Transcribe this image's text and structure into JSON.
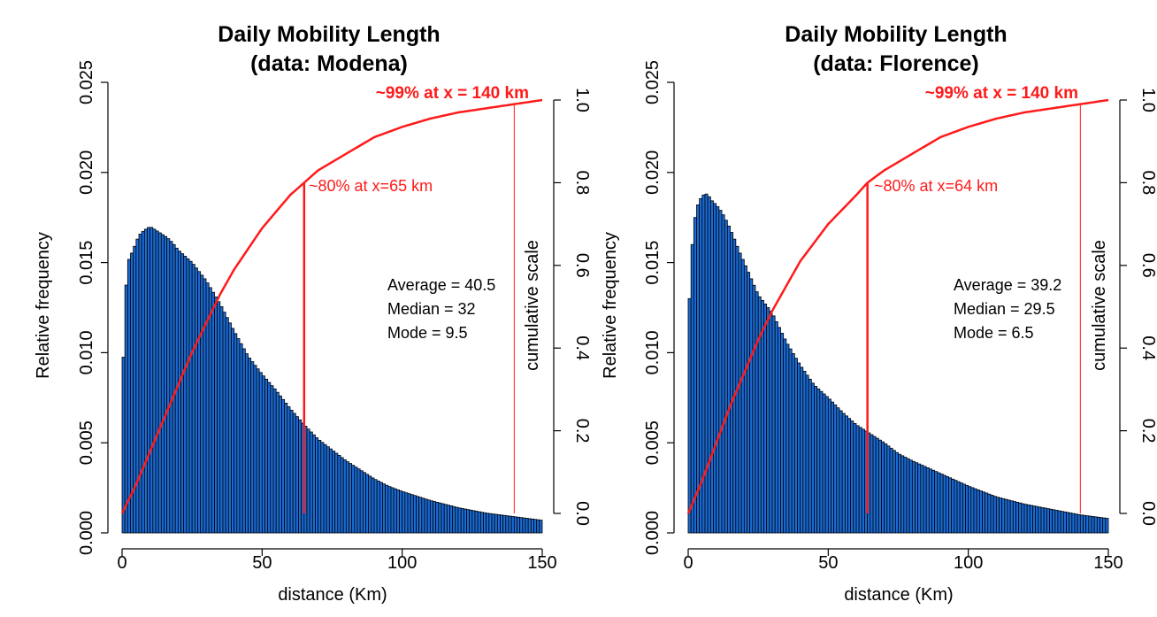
{
  "colors": {
    "bar_fill": "#1a6bd6",
    "bar_stroke": "#000000",
    "cdf_line": "#ff1a1a",
    "axis": "#000000"
  },
  "chart_data": [
    {
      "type": "bar",
      "title_line1": "Daily Mobility Length",
      "title_line2": "(data: Modena)",
      "xlabel": "distance (Km)",
      "ylabel": "Relative frequency",
      "y2label": "cumulative scale",
      "xlim": [
        0,
        150
      ],
      "ylim": [
        0,
        0.025
      ],
      "y2lim": [
        0,
        1.0
      ],
      "x_ticks": [
        0,
        50,
        100,
        150
      ],
      "x_tick_labels": [
        "0",
        "50",
        "100",
        "150"
      ],
      "y_ticks": [
        0,
        0.005,
        0.01,
        0.015,
        0.02,
        0.025
      ],
      "y_tick_labels": [
        "0.000",
        "0.005",
        "0.010",
        "0.015",
        "0.020",
        "0.025"
      ],
      "y2_ticks": [
        0,
        0.2,
        0.4,
        0.6,
        0.8,
        1.0
      ],
      "y2_tick_labels": [
        "0.0",
        "0.2",
        "0.4",
        "0.6",
        "0.8",
        "1.0"
      ],
      "bin_width": 1,
      "histogram": {
        "x": [
          0,
          1,
          2,
          4,
          6,
          8,
          10,
          12,
          14,
          16,
          18,
          20,
          25,
          30,
          35,
          40,
          45,
          50,
          55,
          60,
          65,
          70,
          75,
          80,
          85,
          90,
          95,
          100,
          110,
          120,
          130,
          140,
          150
        ],
        "y": [
          0.007,
          0.0125,
          0.015,
          0.0157,
          0.0165,
          0.0168,
          0.017,
          0.0168,
          0.0166,
          0.0164,
          0.0161,
          0.0157,
          0.015,
          0.014,
          0.0127,
          0.0112,
          0.0098,
          0.0088,
          0.0079,
          0.0069,
          0.006,
          0.0052,
          0.0046,
          0.004,
          0.0035,
          0.003,
          0.0026,
          0.0023,
          0.0018,
          0.0014,
          0.0011,
          0.0009,
          0.0007
        ]
      },
      "cdf": {
        "x": [
          0,
          5,
          10,
          15,
          20,
          25,
          30,
          35,
          40,
          50,
          60,
          65,
          70,
          80,
          90,
          100,
          110,
          120,
          130,
          140,
          150
        ],
        "y": [
          0.0,
          0.07,
          0.15,
          0.23,
          0.31,
          0.39,
          0.46,
          0.53,
          0.59,
          0.69,
          0.77,
          0.8,
          0.83,
          0.87,
          0.91,
          0.935,
          0.955,
          0.97,
          0.98,
          0.99,
          1.0
        ]
      },
      "markers": [
        {
          "x": 65,
          "cdf": 0.8,
          "label": "~80% at x=65 km"
        },
        {
          "x": 140,
          "cdf": 0.99,
          "label": "~99% at x = 140 km"
        }
      ],
      "stats": [
        "Average = 40.5",
        "Median = 32",
        "Mode = 9.5"
      ]
    },
    {
      "type": "bar",
      "title_line1": "Daily Mobility Length",
      "title_line2": "(data: Florence)",
      "xlabel": "distance (Km)",
      "ylabel": "Relative frequency",
      "y2label": "cumulative scale",
      "xlim": [
        0,
        150
      ],
      "ylim": [
        0,
        0.025
      ],
      "y2lim": [
        0,
        1.0
      ],
      "x_ticks": [
        0,
        50,
        100,
        150
      ],
      "x_tick_labels": [
        "0",
        "50",
        "100",
        "150"
      ],
      "y_ticks": [
        0,
        0.005,
        0.01,
        0.015,
        0.02,
        0.025
      ],
      "y_tick_labels": [
        "0.000",
        "0.005",
        "0.010",
        "0.015",
        "0.020",
        "0.025"
      ],
      "y2_ticks": [
        0,
        0.2,
        0.4,
        0.6,
        0.8,
        1.0
      ],
      "y2_tick_labels": [
        "0.0",
        "0.2",
        "0.4",
        "0.6",
        "0.8",
        "1.0"
      ],
      "bin_width": 1,
      "histogram": {
        "x": [
          0,
          1,
          2,
          3,
          4,
          5,
          6,
          7,
          8,
          10,
          12,
          14,
          16,
          18,
          20,
          25,
          30,
          35,
          40,
          45,
          50,
          55,
          60,
          65,
          70,
          75,
          80,
          90,
          100,
          110,
          120,
          130,
          140,
          150
        ],
        "y": [
          0.011,
          0.015,
          0.017,
          0.018,
          0.0184,
          0.0187,
          0.0188,
          0.0188,
          0.0185,
          0.0182,
          0.0178,
          0.0172,
          0.0165,
          0.0157,
          0.015,
          0.0132,
          0.0122,
          0.0106,
          0.0093,
          0.0082,
          0.0075,
          0.0067,
          0.006,
          0.0055,
          0.005,
          0.0044,
          0.004,
          0.0033,
          0.0026,
          0.002,
          0.0016,
          0.0013,
          0.001,
          0.0008
        ]
      },
      "cdf": {
        "x": [
          0,
          5,
          10,
          15,
          20,
          25,
          30,
          35,
          40,
          50,
          60,
          64,
          70,
          80,
          90,
          100,
          110,
          120,
          130,
          140,
          150
        ],
        "y": [
          0.0,
          0.08,
          0.17,
          0.26,
          0.34,
          0.42,
          0.49,
          0.55,
          0.61,
          0.7,
          0.77,
          0.8,
          0.83,
          0.87,
          0.91,
          0.935,
          0.955,
          0.97,
          0.98,
          0.99,
          1.0
        ]
      },
      "markers": [
        {
          "x": 64,
          "cdf": 0.8,
          "label": "~80% at x=64 km"
        },
        {
          "x": 140,
          "cdf": 0.99,
          "label": "~99% at x = 140 km"
        }
      ],
      "stats": [
        "Average = 39.2",
        "Median = 29.5",
        "Mode = 6.5"
      ]
    }
  ]
}
